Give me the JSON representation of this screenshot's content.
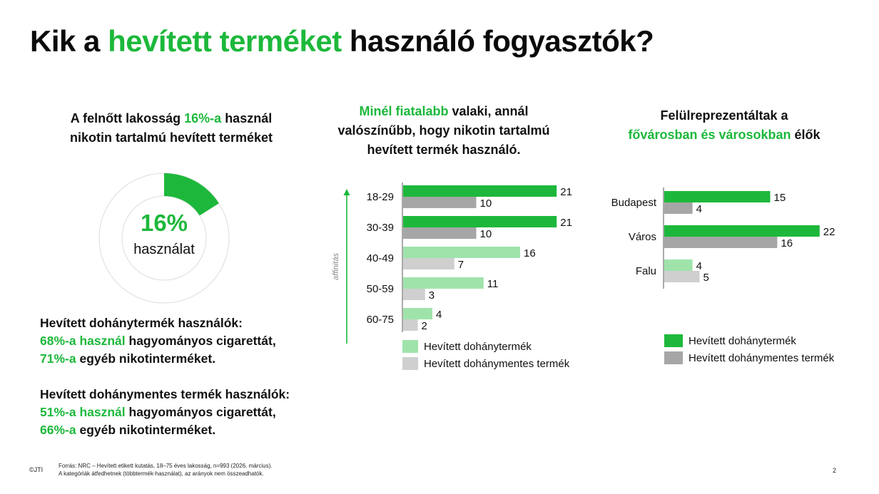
{
  "title": {
    "pre": "Kik a ",
    "highlight": "hevített terméket",
    "post": " használó fogyasztók?"
  },
  "left": {
    "heading": {
      "pre": "A felnőtt lakosság ",
      "highlight": "16%-a",
      "post": " használ",
      "line2": "nikotin tartalmú hevített terméket"
    },
    "donut": {
      "percent": 16,
      "value_label": "16%",
      "caption": "használat"
    },
    "stats": [
      {
        "heading": "Hevített dohánytermék használók:",
        "line1": {
          "highlight": "68%-a használ",
          "rest": " hagyományos cigarettát,"
        },
        "line2": {
          "highlight": "71%-a",
          "rest": " egyéb nikotinterméket."
        }
      },
      {
        "heading": "Hevített dohánymentes termék használók:",
        "line1": {
          "highlight": "51%-a használ",
          "rest": " hagyományos cigarettát,"
        },
        "line2": {
          "highlight": "66%-a",
          "rest": " egyéb nikotinterméket."
        }
      }
    ]
  },
  "middle": {
    "heading": {
      "highlight": "Minél fiatalabb",
      "post": " valaki, annál",
      "line2": "valószínűbb, hogy nikotin tartalmú",
      "line3": "hevített termék használó."
    },
    "arrow_label": "affinitás"
  },
  "right": {
    "heading": {
      "line1": "Felülreprezentáltak a",
      "highlight": "fővárosban és városokban",
      "post": " élők"
    }
  },
  "colors": {
    "green": "#1db83b",
    "gray": "#a6a6a6",
    "light_green": "#9fe3ab",
    "light_gray": "#cfcfcf",
    "donut_track": "#e3e3e3"
  },
  "chart_data": [
    {
      "type": "bar",
      "orientation": "horizontal",
      "categories": [
        "18-29",
        "30-39",
        "40-49",
        "50-59",
        "60-75"
      ],
      "series": [
        {
          "name": "Hevített dohánytermék",
          "values": [
            21,
            21,
            16,
            11,
            4
          ]
        },
        {
          "name": "Hevített dohánymentes termék",
          "values": [
            10,
            10,
            7,
            3,
            2
          ]
        }
      ],
      "highlighted_categories": [
        "18-29",
        "30-39"
      ],
      "legend": [
        "Hevített dohánytermék",
        "Hevített dohánymentes termék"
      ],
      "xlim": [
        0,
        21
      ]
    },
    {
      "type": "bar",
      "orientation": "horizontal",
      "categories": [
        "Budapest",
        "Város",
        "Falu"
      ],
      "series": [
        {
          "name": "Hevített dohánytermék",
          "values": [
            15,
            22,
            4
          ]
        },
        {
          "name": "Hevített dohánymentes termék",
          "values": [
            4,
            16,
            5
          ]
        }
      ],
      "highlighted_categories": [
        "Budapest",
        "Város"
      ],
      "legend": [
        "Hevített dohánytermék",
        "Hevített dohánymentes termék"
      ],
      "xlim": [
        0,
        22
      ]
    }
  ],
  "footer": {
    "copyright": "©JTI",
    "source_line1": "Forrás: NRC – Hevített etikett kutatás, 18–75 éves lakosság, n=993 (2026. március).",
    "source_line2": "A kategóriák átfedhetnek (többtermék-használat), az arányok nem összeadhatók.",
    "page_number": "2"
  }
}
